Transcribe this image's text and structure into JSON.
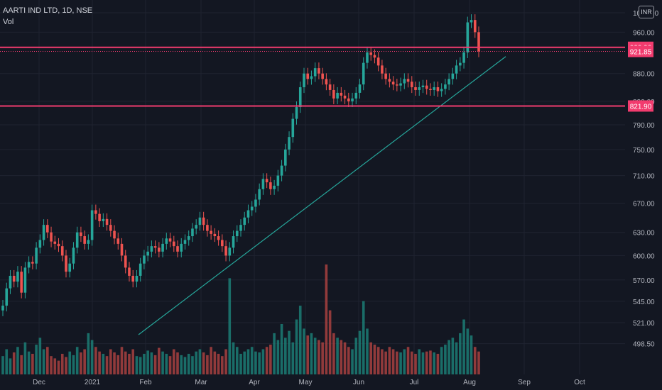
{
  "header": {
    "symbol_title": "AARTI IND LTD, 1D, NSE",
    "volume_label": "Vol",
    "currency_badge": "INR"
  },
  "colors": {
    "background": "#131722",
    "up": "#26a69a",
    "down": "#ef5350",
    "up_volume": "#1c7c74",
    "down_volume": "#a8413f",
    "horizontal_line": "#f23b6e",
    "trendline": "#26a69a",
    "grid": "#1f2330",
    "axis_text": "#b2b5be"
  },
  "chart_data": {
    "type": "candlestick",
    "title": "AARTI IND LTD, 1D, NSE",
    "y_axis": {
      "scale": "log",
      "ticks": [
        "1000.00",
        "960.00",
        "880.00",
        "830.00",
        "790.00",
        "750.00",
        "710.00",
        "670.00",
        "630.00",
        "600.00",
        "570.00",
        "545.00",
        "521.00",
        "498.50"
      ],
      "range": [
        480,
        1000
      ]
    },
    "x_axis": {
      "ticks": [
        "Dec",
        "2021",
        "Feb",
        "Mar",
        "Apr",
        "May",
        "Jun",
        "Jul",
        "Aug",
        "Sep",
        "Oct"
      ]
    },
    "price_labels": [
      {
        "text": "929.90",
        "value": 929.9,
        "color": "#f23b6e",
        "type": "horizontal-line"
      },
      {
        "text": "921.85",
        "value": 921.85,
        "color": "#f23b6e",
        "type": "last-price"
      },
      {
        "text": "821.90",
        "value": 821.9,
        "color": "#f23b6e",
        "type": "horizontal-line"
      }
    ],
    "trendline": {
      "start": {
        "date": "2021-01-29",
        "value": 508
      },
      "end": {
        "date": "2021-08-12",
        "value": 912
      }
    },
    "closes": [
      540,
      560,
      575,
      568,
      580,
      555,
      585,
      592,
      590,
      610,
      620,
      640,
      630,
      618,
      615,
      612,
      600,
      580,
      590,
      610,
      630,
      625,
      615,
      620,
      660,
      655,
      645,
      648,
      640,
      632,
      622,
      615,
      600,
      585,
      575,
      568,
      575,
      590,
      600,
      605,
      612,
      610,
      605,
      615,
      622,
      618,
      612,
      605,
      615,
      620,
      625,
      635,
      640,
      650,
      640,
      632,
      628,
      625,
      620,
      612,
      600,
      610,
      625,
      632,
      640,
      650,
      660,
      665,
      675,
      690,
      705,
      700,
      690,
      695,
      710,
      725,
      750,
      770,
      800,
      820,
      855,
      880,
      870,
      875,
      890,
      880,
      870,
      860,
      850,
      835,
      845,
      840,
      835,
      830,
      835,
      845,
      860,
      900,
      920,
      915,
      910,
      895,
      880,
      870,
      865,
      860,
      858,
      862,
      870,
      865,
      855,
      850,
      855,
      858,
      852,
      850,
      855,
      848,
      852,
      860,
      870,
      880,
      895,
      900,
      920,
      980,
      985,
      960,
      921.85
    ],
    "volumes": [
      40,
      55,
      35,
      48,
      60,
      42,
      70,
      50,
      45,
      65,
      80,
      55,
      60,
      40,
      35,
      30,
      45,
      38,
      50,
      42,
      60,
      48,
      55,
      90,
      75,
      60,
      50,
      45,
      40,
      55,
      48,
      42,
      60,
      50,
      45,
      55,
      40,
      38,
      45,
      52,
      48,
      42,
      58,
      50,
      45,
      40,
      55,
      48,
      42,
      38,
      45,
      40,
      50,
      55,
      48,
      42,
      60,
      50,
      45,
      40,
      55,
      210,
      70,
      60,
      45,
      50,
      55,
      60,
      50,
      48,
      55,
      60,
      65,
      90,
      75,
      110,
      80,
      95,
      70,
      120,
      150,
      100,
      85,
      90,
      80,
      75,
      70,
      240,
      140,
      90,
      80,
      75,
      70,
      60,
      55,
      80,
      95,
      160,
      100,
      70,
      65,
      60,
      55,
      50,
      60,
      55,
      50,
      48,
      55,
      60,
      50,
      45,
      55,
      48,
      50,
      52,
      48,
      45,
      60,
      65,
      75,
      80,
      70,
      90,
      120,
      100,
      85,
      60,
      50
    ]
  },
  "date_axis_labels": [
    "Dec",
    "2021",
    "Feb",
    "Mar",
    "Apr",
    "May",
    "Jun",
    "Jul",
    "Aug",
    "Sep",
    "Oct"
  ]
}
